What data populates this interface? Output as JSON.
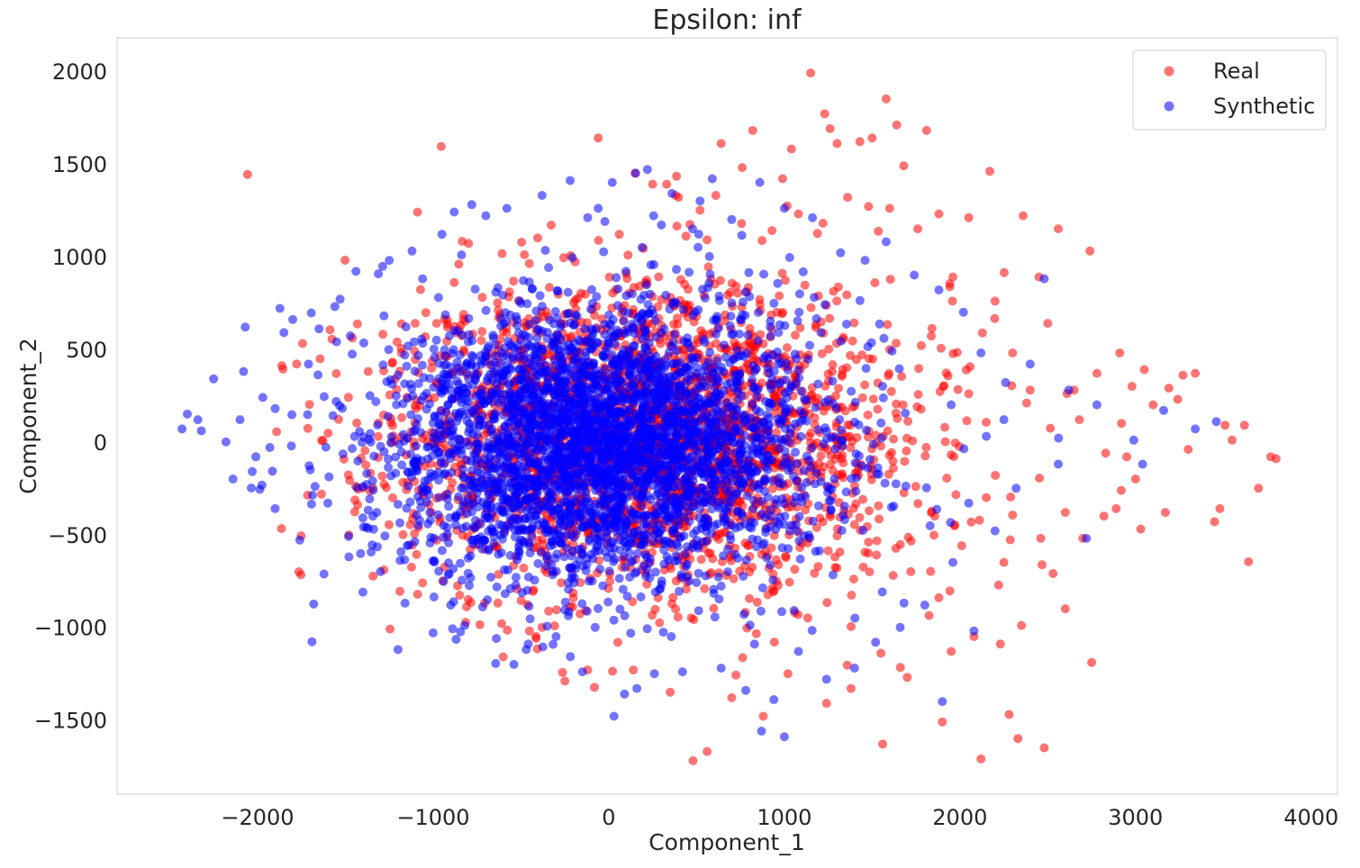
{
  "chart_data": {
    "type": "scatter",
    "title": "Epsilon: inf",
    "xlabel": "Component_1",
    "ylabel": "Component_2",
    "xlim": [
      -2800,
      4150
    ],
    "ylim": [
      -1900,
      2180
    ],
    "xticks": [
      -2000,
      -1000,
      0,
      1000,
      2000,
      3000,
      4000
    ],
    "xtick_labels": [
      "−2000",
      "−1000",
      "0",
      "1000",
      "2000",
      "3000",
      "4000"
    ],
    "yticks": [
      -1500,
      -1000,
      -500,
      0,
      500,
      1000,
      1500,
      2000
    ],
    "ytick_labels": [
      "−1500",
      "−1000",
      "−500",
      "0",
      "500",
      "1000",
      "1500",
      "2000"
    ],
    "grid": false,
    "legend_position": "top-right",
    "series": [
      {
        "name": "Real",
        "color": "#ff0000",
        "alpha": 0.55,
        "points": [
          [
            1150,
            1990
          ],
          [
            1580,
            1850
          ],
          [
            1230,
            1770
          ],
          [
            3800,
            -90
          ],
          [
            3770,
            -80
          ],
          [
            3700,
            -250
          ],
          [
            3620,
            90
          ],
          [
            3550,
            10
          ],
          [
            3510,
            90
          ],
          [
            3480,
            -360
          ],
          [
            3450,
            -430
          ],
          [
            3340,
            370
          ],
          [
            3270,
            360
          ],
          [
            3190,
            290
          ],
          [
            3170,
            -380
          ],
          [
            3050,
            390
          ],
          [
            3030,
            -470
          ],
          [
            2980,
            300
          ],
          [
            2950,
            -80
          ],
          [
            2910,
            480
          ],
          [
            2890,
            -360
          ],
          [
            2830,
            -60
          ],
          [
            2780,
            370
          ],
          [
            2740,
            1030
          ],
          [
            2700,
            -520
          ],
          [
            2650,
            280
          ],
          [
            2600,
            -380
          ],
          [
            2560,
            1150
          ],
          [
            2530,
            -710
          ],
          [
            2500,
            640
          ],
          [
            2480,
            -1650
          ],
          [
            2450,
            890
          ],
          [
            2380,
            210
          ],
          [
            2350,
            -990
          ],
          [
            2330,
            -1600
          ],
          [
            2280,
            -1470
          ],
          [
            2250,
            -650
          ],
          [
            2230,
            -1090
          ],
          [
            2170,
            1460
          ],
          [
            2120,
            -1710
          ],
          [
            2080,
            -1050
          ],
          [
            2050,
            1210
          ],
          [
            2010,
            -560
          ],
          [
            1960,
            890
          ],
          [
            1900,
            -1510
          ],
          [
            1880,
            1230
          ],
          [
            1810,
            1680
          ],
          [
            1760,
            1150
          ],
          [
            1720,
            -700
          ],
          [
            1680,
            1490
          ],
          [
            1640,
            1710
          ],
          [
            1600,
            1260
          ],
          [
            1560,
            -1630
          ],
          [
            1500,
            1640
          ],
          [
            1480,
            1270
          ],
          [
            1430,
            1620
          ],
          [
            1360,
            1320
          ],
          [
            1300,
            1610
          ],
          [
            1260,
            1690
          ],
          [
            1220,
            1180
          ],
          [
            1080,
            1230
          ],
          [
            1040,
            1580
          ],
          [
            990,
            1420
          ],
          [
            930,
            1140
          ],
          [
            880,
            -1480
          ],
          [
            820,
            1680
          ],
          [
            760,
            1480
          ],
          [
            640,
            1610
          ],
          [
            610,
            1330
          ],
          [
            560,
            1090
          ],
          [
            520,
            1250
          ],
          [
            480,
            -1720
          ],
          [
            440,
            1110
          ],
          [
            380,
            1330
          ],
          [
            330,
            1390
          ],
          [
            250,
            1390
          ],
          [
            150,
            1450
          ],
          [
            60,
            1120
          ],
          [
            -60,
            1640
          ],
          [
            -120,
            -1230
          ],
          [
            -250,
            -1290
          ],
          [
            -380,
            -1000
          ],
          [
            -480,
            1010
          ],
          [
            -610,
            -980
          ],
          [
            -720,
            780
          ],
          [
            -800,
            -850
          ],
          [
            -880,
            860
          ],
          [
            -980,
            640
          ],
          [
            -1060,
            -760
          ],
          [
            -1180,
            480
          ],
          [
            -1280,
            -690
          ],
          [
            -1370,
            380
          ],
          [
            2600,
            -900
          ],
          [
            2750,
            -1190
          ],
          [
            3000,
            -200
          ],
          [
            3100,
            200
          ],
          [
            3240,
            230
          ],
          [
            3300,
            -40
          ],
          [
            2200,
            760
          ],
          [
            2400,
            280
          ],
          [
            1950,
            -1130
          ],
          [
            1700,
            -1270
          ],
          [
            1550,
            -1140
          ],
          [
            1380,
            -1330
          ],
          [
            1240,
            -1410
          ],
          [
            1020,
            -1250
          ],
          [
            700,
            -1380
          ],
          [
            560,
            -1670
          ],
          [
            350,
            -1350
          ],
          [
            140,
            -1230
          ],
          [
            2820,
            -400
          ],
          [
            2920,
            100
          ],
          [
            2680,
            120
          ],
          [
            2460,
            -520
          ],
          [
            2300,
            480
          ],
          [
            2150,
            -300
          ],
          [
            2050,
            260
          ],
          [
            1880,
            -840
          ],
          [
            1780,
            520
          ],
          [
            1620,
            -720
          ]
        ]
      },
      {
        "name": "Synthetic",
        "color": "#0000ff",
        "alpha": 0.55,
        "points": [
          [
            -2430,
            70
          ],
          [
            -2400,
            150
          ],
          [
            -2340,
            120
          ],
          [
            -2320,
            60
          ],
          [
            -2250,
            340
          ],
          [
            -2180,
            0
          ],
          [
            -2140,
            -200
          ],
          [
            -2100,
            120
          ],
          [
            -2080,
            380
          ],
          [
            -2070,
            620
          ],
          [
            -2030,
            -160
          ],
          [
            -1970,
            240
          ],
          [
            -1930,
            -30
          ],
          [
            -1900,
            -360
          ],
          [
            -1850,
            590
          ],
          [
            -1800,
            660
          ],
          [
            -1760,
            -530
          ],
          [
            -1710,
            420
          ],
          [
            -1650,
            610
          ],
          [
            -1600,
            -330
          ],
          [
            -1560,
            730
          ],
          [
            -1530,
            770
          ],
          [
            -1480,
            -620
          ],
          [
            -1440,
            920
          ],
          [
            -1400,
            -810
          ],
          [
            -1360,
            250
          ],
          [
            -1300,
            -700
          ],
          [
            -1250,
            980
          ],
          [
            -1200,
            360
          ],
          [
            -1160,
            -870
          ],
          [
            -1120,
            1030
          ],
          [
            -1060,
            880
          ],
          [
            -1000,
            -1030
          ],
          [
            -950,
            1120
          ],
          [
            -880,
            1240
          ],
          [
            -820,
            -990
          ],
          [
            -780,
            1280
          ],
          [
            -700,
            1220
          ],
          [
            -640,
            -1060
          ],
          [
            -580,
            1260
          ],
          [
            -540,
            -1200
          ],
          [
            -470,
            -1120
          ],
          [
            -380,
            1330
          ],
          [
            -300,
            -1050
          ],
          [
            -220,
            1410
          ],
          [
            -150,
            -1240
          ],
          [
            -120,
            1210
          ],
          [
            -60,
            1260
          ],
          [
            20,
            1400
          ],
          [
            90,
            -1360
          ],
          [
            160,
            -1330
          ],
          [
            220,
            1470
          ],
          [
            260,
            -1250
          ],
          [
            300,
            1170
          ],
          [
            360,
            1340
          ],
          [
            420,
            -1240
          ],
          [
            520,
            1300
          ],
          [
            590,
            1420
          ],
          [
            640,
            -1220
          ],
          [
            700,
            1200
          ],
          [
            780,
            -1340
          ],
          [
            860,
            1400
          ],
          [
            940,
            -1390
          ],
          [
            1000,
            1260
          ],
          [
            1080,
            -1130
          ],
          [
            1160,
            1210
          ],
          [
            1240,
            -1280
          ],
          [
            1320,
            1020
          ],
          [
            1400,
            -1220
          ],
          [
            1460,
            980
          ],
          [
            1520,
            -1080
          ],
          [
            1580,
            1080
          ],
          [
            1660,
            -1000
          ],
          [
            1740,
            900
          ],
          [
            1800,
            -880
          ],
          [
            1880,
            820
          ],
          [
            1960,
            -650
          ],
          [
            2020,
            700
          ],
          [
            2080,
            -1020
          ],
          [
            2120,
            480
          ],
          [
            2200,
            -480
          ],
          [
            2260,
            320
          ],
          [
            2320,
            -250
          ],
          [
            2400,
            420
          ],
          [
            2480,
            880
          ],
          [
            2560,
            -120
          ],
          [
            2620,
            280
          ],
          [
            2720,
            -520
          ],
          [
            2780,
            200
          ],
          [
            2990,
            10
          ],
          [
            3040,
            -120
          ],
          [
            3160,
            170
          ],
          [
            3340,
            70
          ],
          [
            3460,
            110
          ],
          [
            30,
            -1480
          ],
          [
            870,
            -1560
          ],
          [
            1900,
            -1400
          ],
          [
            1000,
            -1590
          ],
          [
            -1200,
            -1120
          ],
          [
            -1550,
            540
          ],
          [
            -1700,
            -150
          ],
          [
            -1900,
            180
          ],
          [
            -2010,
            -80
          ],
          [
            -1380,
            -460
          ],
          [
            -1280,
            680
          ],
          [
            -900,
            -880
          ],
          [
            2150,
            30
          ],
          [
            2250,
            120
          ],
          [
            1950,
            200
          ],
          [
            2050,
            -330
          ]
        ]
      }
    ],
    "cloud": {
      "Real": {
        "center": [
          230,
          20
        ],
        "sd": [
          740,
          420
        ],
        "count": 2400,
        "seed": 11
      },
      "Synthetic": {
        "center": [
          -40,
          -10
        ],
        "sd": [
          610,
          360
        ],
        "count": 3600,
        "seed": 29
      }
    }
  }
}
